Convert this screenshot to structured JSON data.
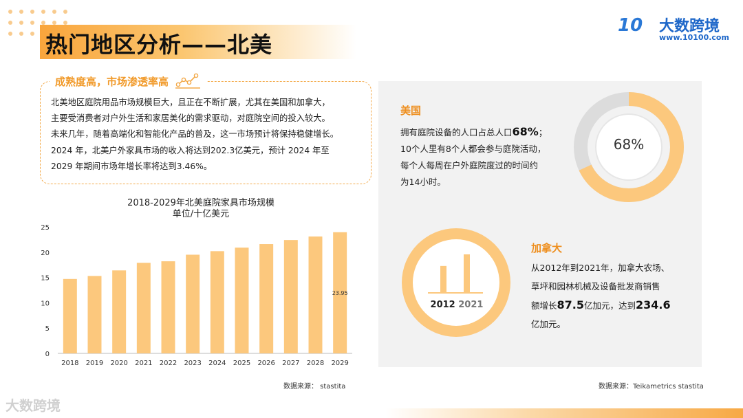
{
  "page": {
    "title": "热门地区分析——北美"
  },
  "brand": {
    "logo_mark": "10",
    "name": "大数跨境",
    "url": "www.10100.com",
    "watermark": "大数跨境",
    "accent_color": "#f7a945",
    "brand_color": "#1e67c9"
  },
  "summary": {
    "heading": "成熟度高，市场渗透率高",
    "icon": "trend-line-icon",
    "lines": [
      "北美地区庭院用品市场规模巨大，且正在不断扩展，尤其在美国和加拿大，",
      "主要受消费者对户外生活和家居美化的需求驱动，对庭院空间的投入较大。",
      "未来几年，随着高端化和智能化产品的普及，这一市场预计将保持稳健增长。",
      "2024 年，北美户外家具市场的收入将达到202.3亿美元，预计 2024 年至",
      "2029 年期间市场年增长率将达到3.46%。"
    ]
  },
  "chart_data": {
    "type": "bar",
    "title": "2018-2029年北美庭院家具市场规模",
    "subtitle": "单位/十亿美元",
    "categories": [
      "2018",
      "2019",
      "2020",
      "2021",
      "2022",
      "2023",
      "2024",
      "2025",
      "2026",
      "2027",
      "2028",
      "2029"
    ],
    "values": [
      14.7,
      15.3,
      16.4,
      17.9,
      18.2,
      19.5,
      20.2,
      20.9,
      21.6,
      22.4,
      23.1,
      23.95
    ],
    "data_labels": {
      "11": "23.95"
    },
    "ylim": [
      0,
      25
    ],
    "yticks": [
      0,
      5,
      10,
      15,
      20,
      25
    ],
    "bar_color": "#fcc87d",
    "grid": false,
    "xlabel": "",
    "ylabel": ""
  },
  "sources": {
    "left": "数据来源： stastita",
    "right": "数据来源：Teikametrics stastita"
  },
  "usa": {
    "heading": "美国",
    "line1_pre": "拥有庭院设备的人口占总人口",
    "line1_value": "68%",
    "line1_post": "；",
    "line2": "10个人里有8个人都会参与庭院活动，",
    "line3": "每个人每周在户外庭院度过的时间约",
    "line4": "为14小时。",
    "donut_value": 0.68,
    "donut_label": "68%",
    "donut_color": "#fcc87d",
    "donut_track_color": "#dcdcdc"
  },
  "canada": {
    "heading": "加拿大",
    "line1": "从2012年到2021年，加拿大农场、",
    "line2": "草坪和园林机械及设备批发商销售",
    "line3_pre": "额增长",
    "growth": "87.5",
    "line3_mid": "亿加元，达到",
    "total": "234.6",
    "line4": "亿加元。",
    "year_start": "2012",
    "year_end": "2021",
    "bar_values": [
      1,
      1.43
    ],
    "bar_color": "#fcc87d"
  }
}
